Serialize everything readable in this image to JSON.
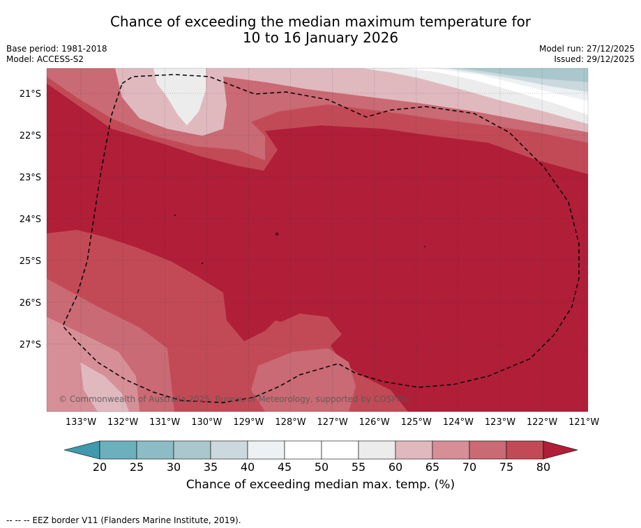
{
  "header": {
    "title_line1": "Chance of exceeding the median maximum temperature for",
    "title_line2": "10 to 16 January 2026",
    "base_period": "Base period: 1981-2018",
    "model": "Model: ACCESS-S2",
    "model_run": "Model run: 27/12/2025",
    "issued": "Issued: 29/12/2025"
  },
  "map": {
    "lat_labels": [
      "21°S",
      "22°S",
      "23°S",
      "24°S",
      "25°S",
      "26°S",
      "27°S"
    ],
    "lon_labels": [
      "133°W",
      "132°W",
      "131°W",
      "130°W",
      "129°W",
      "128°W",
      "127°W",
      "126°W",
      "125°W",
      "124°W",
      "123°W",
      "122°W",
      "121°W"
    ],
    "copyright": "© Commonwealth of Australia 2025, Bureau of Meteorology, supported by COSPPac",
    "dominant_category": "80+"
  },
  "colorbar": {
    "ticks": [
      "20",
      "25",
      "30",
      "35",
      "40",
      "45",
      "50",
      "55",
      "60",
      "65",
      "70",
      "75",
      "80"
    ],
    "colors": [
      "#6cb0bd",
      "#8cbcc6",
      "#a9c7cc",
      "#cbd9de",
      "#edf1f3",
      "#ffffff",
      "#ffffff",
      "#ececec",
      "#e0b9bf",
      "#d68f97",
      "#c96a74",
      "#c24a56"
    ],
    "under_color": "#3e9aac",
    "over_color": "#b01e38",
    "label": "Chance of exceeding median max. temp. (%)"
  },
  "legend": {
    "line_sample": "--  --  --",
    "eez_text": "EEZ border V11 (Flanders Marine Institute, 2019)."
  }
}
